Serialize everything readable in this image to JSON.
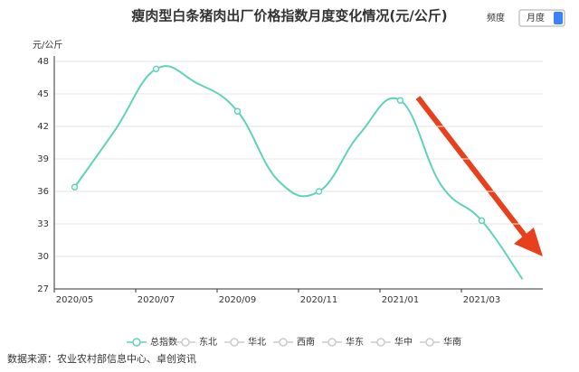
{
  "chart_data": {
    "type": "line",
    "title": "瘦肉型白条猪肉出厂价格指数月度变化情况(元/公斤)",
    "frequency_label": "频度",
    "frequency_value": "月度",
    "y_label": "元/公斤",
    "source": "数据来源：农业农村部信息中心、卓创资讯",
    "categories": [
      "2020/05",
      null,
      "2020/07",
      null,
      "2020/09",
      null,
      "2020/11",
      null,
      "2021/01",
      null,
      "2021/03",
      null
    ],
    "series": [
      {
        "name": "总指数",
        "color": "#5fd3b8",
        "values": [
          36.4,
          41.7,
          47.3,
          46.0,
          43.4,
          37.0,
          36.0,
          41.3,
          44.4,
          36.6,
          33.3,
          27.9
        ]
      },
      {
        "name": "东北",
        "color": "#cccccc",
        "values": [
          null,
          null,
          null,
          null,
          null,
          null,
          null,
          null,
          null,
          null,
          null,
          null
        ]
      },
      {
        "name": "华北",
        "color": "#cccccc",
        "values": [
          null,
          null,
          null,
          null,
          null,
          null,
          null,
          null,
          null,
          null,
          null,
          null
        ]
      },
      {
        "name": "西南",
        "color": "#cccccc",
        "values": [
          null,
          null,
          null,
          null,
          null,
          null,
          null,
          null,
          null,
          null,
          null,
          null
        ]
      },
      {
        "name": "华东",
        "color": "#cccccc",
        "values": [
          null,
          null,
          null,
          null,
          null,
          null,
          null,
          null,
          null,
          null,
          null,
          null
        ]
      },
      {
        "name": "华中",
        "color": "#cccccc",
        "values": [
          null,
          null,
          null,
          null,
          null,
          null,
          null,
          null,
          null,
          null,
          null,
          null
        ]
      },
      {
        "name": "华南",
        "color": "#cccccc",
        "values": [
          null,
          null,
          null,
          null,
          null,
          null,
          null,
          null,
          null,
          null,
          null,
          null
        ]
      }
    ],
    "ylim": [
      27,
      48
    ],
    "yticks": [
      27,
      30,
      33,
      36,
      39,
      42,
      45,
      48
    ],
    "grid": true
  }
}
